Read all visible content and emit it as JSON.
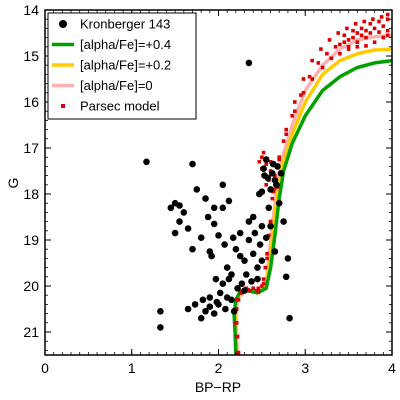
{
  "chart_data": {
    "type": "scatter",
    "title": "",
    "xlabel": "BP−RP",
    "ylabel": "G",
    "xlim": [
      0,
      4
    ],
    "ylim": [
      21.5,
      14
    ],
    "y_inverted": true,
    "grid": false,
    "legend_position": "top-left",
    "x_ticks": [
      0,
      1,
      2,
      3,
      4
    ],
    "y_ticks": [
      14,
      15,
      16,
      17,
      18,
      19,
      20,
      21
    ],
    "series": [
      {
        "name": "Kronberger 143",
        "kind": "scatter",
        "marker": "circle",
        "color": "#000000",
        "points": [
          [
            1.17,
            17.3
          ],
          [
            1.33,
            20.55
          ],
          [
            1.33,
            20.9
          ],
          [
            1.45,
            18.3
          ],
          [
            1.5,
            18.2
          ],
          [
            1.5,
            18.85
          ],
          [
            1.55,
            18.25
          ],
          [
            1.55,
            18.6
          ],
          [
            1.6,
            18.4
          ],
          [
            1.65,
            18.75
          ],
          [
            1.65,
            20.5
          ],
          [
            1.7,
            19.2
          ],
          [
            1.7,
            17.35
          ],
          [
            1.73,
            20.4
          ],
          [
            1.75,
            17.9
          ],
          [
            1.8,
            18.95
          ],
          [
            1.8,
            20.7
          ],
          [
            1.82,
            20.3
          ],
          [
            1.85,
            18.1
          ],
          [
            1.85,
            20.55
          ],
          [
            1.88,
            18.5
          ],
          [
            1.9,
            20.25
          ],
          [
            1.9,
            20.45
          ],
          [
            1.92,
            19.35
          ],
          [
            1.95,
            20.6
          ],
          [
            1.95,
            18.3
          ],
          [
            1.97,
            19.85
          ],
          [
            2.0,
            18.9
          ],
          [
            2.0,
            20.4
          ],
          [
            2.02,
            20.15
          ],
          [
            2.05,
            17.8
          ],
          [
            2.05,
            19.95
          ],
          [
            2.08,
            20.5
          ],
          [
            2.1,
            19.6
          ],
          [
            2.1,
            20.25
          ],
          [
            2.12,
            18.15
          ],
          [
            2.15,
            20.3
          ],
          [
            2.15,
            19.75
          ],
          [
            2.18,
            20.55
          ],
          [
            2.2,
            19.2
          ],
          [
            2.22,
            20.05
          ],
          [
            2.25,
            18.85
          ],
          [
            2.27,
            19.95
          ],
          [
            2.3,
            19.45
          ],
          [
            2.3,
            20.1
          ],
          [
            2.32,
            19.75
          ],
          [
            2.35,
            18.6
          ],
          [
            2.35,
            19.0
          ],
          [
            2.38,
            19.9
          ],
          [
            2.4,
            18.5
          ],
          [
            2.4,
            19.3
          ],
          [
            2.42,
            18.85
          ],
          [
            2.45,
            19.6
          ],
          [
            2.47,
            18.0
          ],
          [
            2.48,
            19.1
          ],
          [
            2.5,
            17.95
          ],
          [
            2.5,
            19.45
          ],
          [
            2.52,
            17.45
          ],
          [
            2.55,
            17.25
          ],
          [
            2.55,
            18.95
          ],
          [
            2.57,
            17.65
          ],
          [
            2.58,
            18.3
          ],
          [
            2.6,
            18.7
          ],
          [
            2.6,
            17.9
          ],
          [
            2.62,
            17.55
          ],
          [
            2.63,
            17.35
          ],
          [
            2.65,
            17.7
          ],
          [
            2.65,
            19.25
          ],
          [
            2.67,
            17.8
          ],
          [
            2.68,
            17.4
          ],
          [
            2.7,
            18.2
          ],
          [
            2.72,
            17.55
          ],
          [
            2.75,
            18.6
          ],
          [
            2.78,
            19.8
          ],
          [
            2.8,
            19.4
          ],
          [
            2.82,
            20.7
          ],
          [
            2.05,
            18.3
          ],
          [
            1.95,
            18.65
          ],
          [
            2.17,
            18.95
          ],
          [
            2.25,
            19.35
          ],
          [
            2.07,
            19.1
          ],
          [
            2.35,
            15.15
          ],
          [
            1.98,
            20.35
          ],
          [
            2.12,
            19.85
          ],
          [
            2.5,
            18.7
          ],
          [
            2.45,
            19.85
          ],
          [
            2.53,
            17.6
          ],
          [
            1.9,
            19.25
          ]
        ]
      },
      {
        "name": "[alpha/Fe]=+0.4",
        "kind": "line",
        "color": "#00a000",
        "points": [
          [
            2.2,
            21.5
          ],
          [
            2.19,
            21.0
          ],
          [
            2.18,
            20.6
          ],
          [
            2.2,
            20.3
          ],
          [
            2.25,
            20.12
          ],
          [
            2.33,
            20.1
          ],
          [
            2.45,
            20.15
          ],
          [
            2.55,
            20.05
          ],
          [
            2.6,
            19.6
          ],
          [
            2.65,
            18.9
          ],
          [
            2.7,
            18.1
          ],
          [
            2.75,
            17.5
          ],
          [
            2.85,
            16.9
          ],
          [
            3.0,
            16.3
          ],
          [
            3.2,
            15.75
          ],
          [
            3.4,
            15.45
          ],
          [
            3.6,
            15.25
          ],
          [
            3.8,
            15.15
          ],
          [
            4.0,
            15.1
          ]
        ]
      },
      {
        "name": "[alpha/Fe]=+0.2",
        "kind": "line",
        "color": "#ffcc00",
        "points": [
          [
            2.21,
            21.5
          ],
          [
            2.2,
            21.0
          ],
          [
            2.19,
            20.6
          ],
          [
            2.21,
            20.3
          ],
          [
            2.26,
            20.12
          ],
          [
            2.34,
            20.1
          ],
          [
            2.46,
            20.15
          ],
          [
            2.55,
            20.0
          ],
          [
            2.59,
            19.5
          ],
          [
            2.63,
            18.8
          ],
          [
            2.68,
            18.0
          ],
          [
            2.74,
            17.35
          ],
          [
            2.85,
            16.7
          ],
          [
            3.0,
            16.0
          ],
          [
            3.2,
            15.4
          ],
          [
            3.4,
            15.1
          ],
          [
            3.6,
            14.95
          ],
          [
            3.8,
            14.87
          ],
          [
            4.0,
            14.85
          ]
        ]
      },
      {
        "name": "[alpha/Fe]=0",
        "kind": "line",
        "color": "#ffb0b0",
        "points": [
          [
            2.22,
            21.5
          ],
          [
            2.21,
            21.0
          ],
          [
            2.2,
            20.6
          ],
          [
            2.22,
            20.3
          ],
          [
            2.27,
            20.12
          ],
          [
            2.35,
            20.1
          ],
          [
            2.47,
            20.15
          ],
          [
            2.55,
            19.95
          ],
          [
            2.58,
            19.4
          ],
          [
            2.62,
            18.7
          ],
          [
            2.67,
            17.9
          ],
          [
            2.73,
            17.25
          ],
          [
            2.85,
            16.5
          ],
          [
            3.0,
            15.75
          ],
          [
            3.2,
            15.2
          ],
          [
            3.4,
            14.85
          ],
          [
            3.6,
            14.65
          ],
          [
            3.8,
            14.58
          ],
          [
            4.0,
            14.55
          ]
        ]
      },
      {
        "name": "Parsec model",
        "kind": "scatter",
        "marker": "square",
        "color": "#dd0000",
        "curves": [
          [
            [
              2.22,
              21.45
            ],
            [
              2.21,
              21.1
            ],
            [
              2.2,
              20.8
            ],
            [
              2.2,
              20.5
            ],
            [
              2.22,
              20.3
            ],
            [
              2.26,
              20.12
            ],
            [
              2.32,
              20.05
            ],
            [
              2.4,
              20.05
            ],
            [
              2.46,
              20.05
            ],
            [
              2.52,
              19.85
            ],
            [
              2.56,
              19.3
            ],
            [
              2.6,
              18.6
            ],
            [
              2.65,
              17.8
            ],
            [
              2.7,
              17.2
            ],
            [
              2.78,
              16.7
            ],
            [
              2.88,
              16.2
            ],
            [
              2.98,
              15.8
            ],
            [
              3.08,
              15.5
            ],
            [
              3.2,
              15.25
            ],
            [
              3.3,
              15.05
            ],
            [
              3.4,
              14.95
            ],
            [
              3.5,
              14.85
            ],
            [
              3.6,
              14.8
            ],
            [
              3.7,
              14.78
            ]
          ],
          [
            [
              2.22,
              21.45
            ],
            [
              2.21,
              21.1
            ],
            [
              2.2,
              20.8
            ],
            [
              2.2,
              20.5
            ],
            [
              2.22,
              20.3
            ],
            [
              2.26,
              20.15
            ],
            [
              2.34,
              20.08
            ],
            [
              2.44,
              20.1
            ],
            [
              2.5,
              20.0
            ],
            [
              2.54,
              19.6
            ],
            [
              2.58,
              18.9
            ],
            [
              2.62,
              18.1
            ],
            [
              2.68,
              17.4
            ],
            [
              2.75,
              16.85
            ],
            [
              2.85,
              16.3
            ],
            [
              2.95,
              15.85
            ],
            [
              3.05,
              15.45
            ],
            [
              3.15,
              15.15
            ],
            [
              3.25,
              14.95
            ],
            [
              3.35,
              14.8
            ],
            [
              3.45,
              14.7
            ],
            [
              3.55,
              14.6
            ],
            [
              3.65,
              14.55
            ],
            [
              3.75,
              14.5
            ],
            [
              3.85,
              14.48
            ],
            [
              3.95,
              14.45
            ]
          ],
          [
            [
              2.23,
              21.45
            ],
            [
              2.22,
              21.1
            ],
            [
              2.21,
              20.8
            ],
            [
              2.21,
              20.5
            ],
            [
              2.23,
              20.3
            ],
            [
              2.27,
              20.15
            ],
            [
              2.36,
              20.1
            ],
            [
              2.46,
              20.12
            ],
            [
              2.52,
              19.95
            ],
            [
              2.56,
              19.4
            ],
            [
              2.6,
              18.6
            ],
            [
              2.64,
              17.9
            ],
            [
              2.7,
              17.25
            ],
            [
              2.78,
              16.6
            ],
            [
              2.88,
              16.0
            ],
            [
              2.98,
              15.5
            ],
            [
              3.08,
              15.1
            ],
            [
              3.18,
              14.85
            ],
            [
              3.28,
              14.65
            ],
            [
              3.38,
              14.5
            ],
            [
              3.48,
              14.4
            ],
            [
              3.58,
              14.3
            ],
            [
              3.68,
              14.25
            ],
            [
              3.78,
              14.2
            ],
            [
              3.88,
              14.15
            ],
            [
              3.95,
              14.1
            ]
          ],
          [
            [
              2.5,
              17.2
            ],
            [
              2.55,
              17.35
            ],
            [
              2.6,
              17.5
            ],
            [
              2.5,
              17.45
            ],
            [
              2.58,
              17.7
            ],
            [
              2.63,
              17.95
            ],
            [
              2.55,
              17.8
            ],
            [
              2.65,
              17.6
            ],
            [
              2.52,
              17.1
            ],
            [
              2.6,
              17.3
            ],
            [
              2.68,
              17.85
            ],
            [
              2.47,
              17.3
            ]
          ],
          [
            [
              3.4,
              14.75
            ],
            [
              3.5,
              14.65
            ],
            [
              3.6,
              14.5
            ],
            [
              3.7,
              14.45
            ],
            [
              3.8,
              14.4
            ],
            [
              3.9,
              14.35
            ],
            [
              3.45,
              14.55
            ],
            [
              3.55,
              14.45
            ],
            [
              3.65,
              14.4
            ],
            [
              3.75,
              14.3
            ],
            [
              3.85,
              14.25
            ],
            [
              3.95,
              14.2
            ],
            [
              3.9,
              14.6
            ],
            [
              3.8,
              14.7
            ],
            [
              3.7,
              14.6
            ],
            [
              3.6,
              14.7
            ],
            [
              3.5,
              14.8
            ],
            [
              3.95,
              14.55
            ]
          ]
        ]
      }
    ]
  }
}
